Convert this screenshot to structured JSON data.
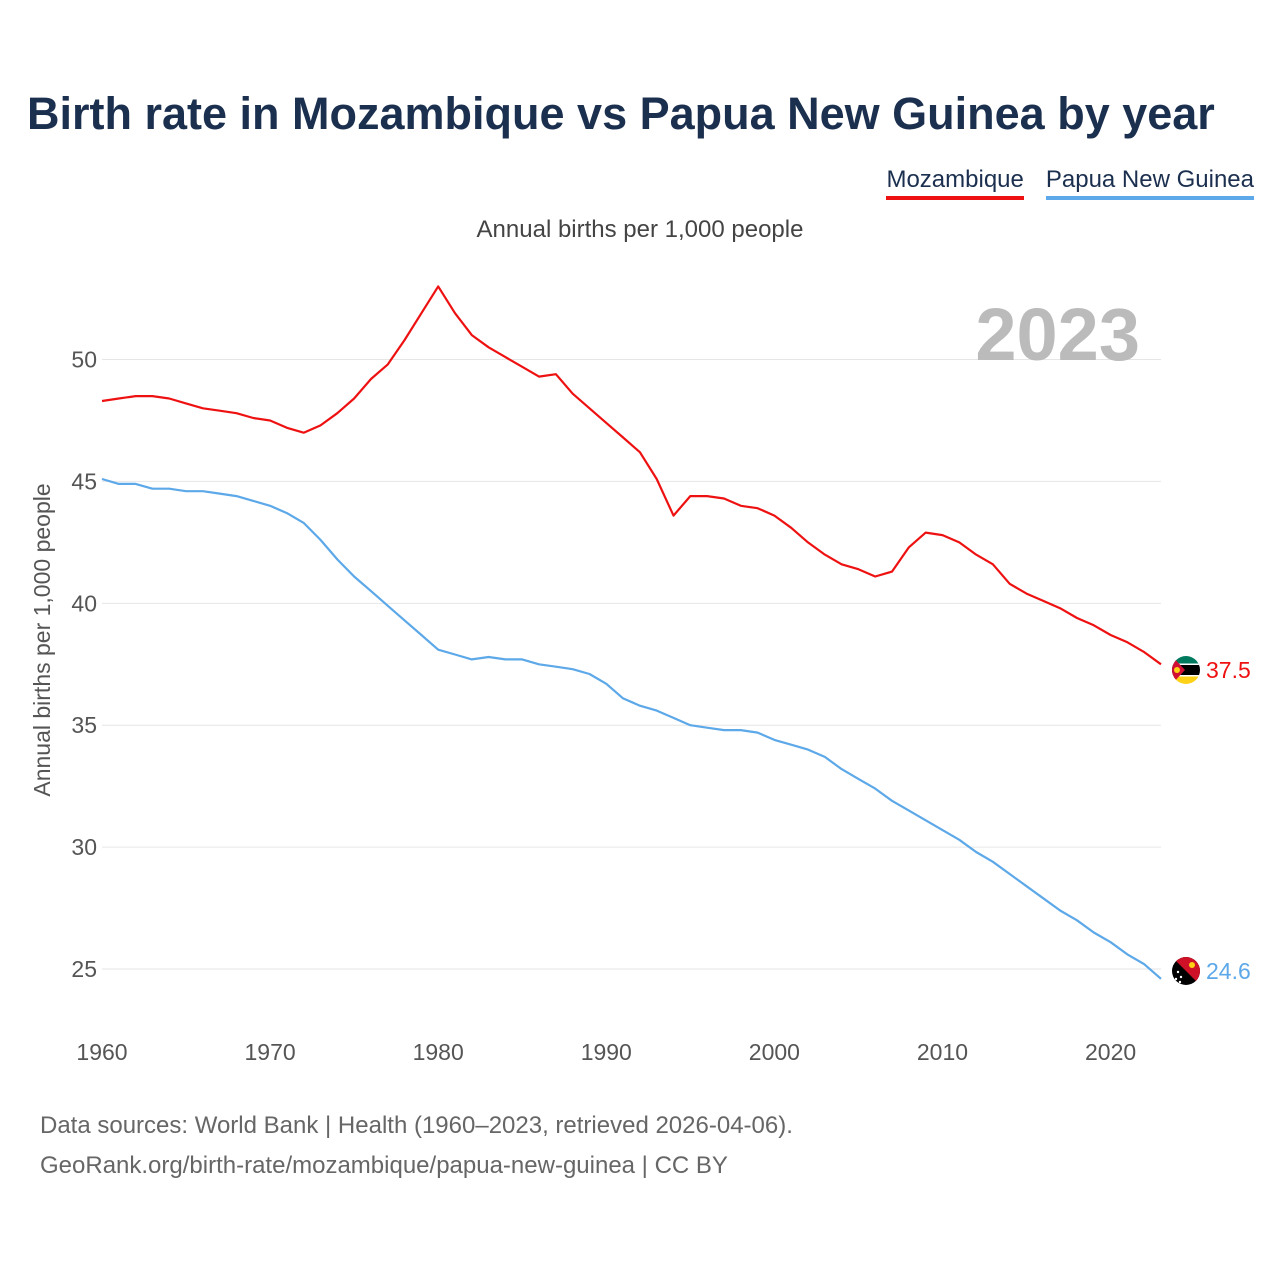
{
  "title": "Birth rate in Mozambique vs Papua New Guinea by year",
  "subtitle": "Annual births per 1,000 people",
  "footer": {
    "line1": "Data sources: World Bank | Health (1960–2023, retrieved 2026-04-06).",
    "line2": "GeoRank.org/birth-rate/mozambique/papua-new-guinea | CC BY"
  },
  "colors": {
    "mozambique": "#ee1111",
    "png": "#5ca8e8",
    "grid": "#e6e6e6",
    "year": "#bbbbbb"
  },
  "chart_data": {
    "type": "line",
    "title": "Birth rate in Mozambique vs Papua New Guinea by year",
    "ylabel": "Annual births per 1,000 people",
    "xlabel": "",
    "year_label": "2023",
    "xlim": [
      1960,
      2023
    ],
    "ylim": [
      22.5,
      54
    ],
    "x_ticks": [
      "1960",
      "1970",
      "1980",
      "1990",
      "2000",
      "2010",
      "2020"
    ],
    "y_ticks": [
      "25",
      "30",
      "35",
      "40",
      "45",
      "50"
    ],
    "legend": [
      "Mozambique",
      "Papua New Guinea"
    ],
    "x": [
      1960,
      1961,
      1962,
      1963,
      1964,
      1965,
      1966,
      1967,
      1968,
      1969,
      1970,
      1971,
      1972,
      1973,
      1974,
      1975,
      1976,
      1977,
      1978,
      1979,
      1980,
      1981,
      1982,
      1983,
      1984,
      1985,
      1986,
      1987,
      1988,
      1989,
      1990,
      1991,
      1992,
      1993,
      1994,
      1995,
      1996,
      1997,
      1998,
      1999,
      2000,
      2001,
      2002,
      2003,
      2004,
      2005,
      2006,
      2007,
      2008,
      2009,
      2010,
      2011,
      2012,
      2013,
      2014,
      2015,
      2016,
      2017,
      2018,
      2019,
      2020,
      2021,
      2022,
      2023
    ],
    "series": [
      {
        "name": "Mozambique",
        "end_label": "37.5",
        "values": [
          48.3,
          48.4,
          48.5,
          48.5,
          48.4,
          48.2,
          48.0,
          47.9,
          47.8,
          47.6,
          47.5,
          47.2,
          47.0,
          47.3,
          47.8,
          48.4,
          49.2,
          49.8,
          50.8,
          51.9,
          53.0,
          51.9,
          51.0,
          50.5,
          50.1,
          49.7,
          49.3,
          49.4,
          48.6,
          48.0,
          47.4,
          46.8,
          46.2,
          45.1,
          43.6,
          44.4,
          44.4,
          44.3,
          44.0,
          43.9,
          43.6,
          43.1,
          42.5,
          42.0,
          41.6,
          41.4,
          41.1,
          41.3,
          42.3,
          42.9,
          42.8,
          42.5,
          42.0,
          41.6,
          40.8,
          40.4,
          40.1,
          39.8,
          39.4,
          39.1,
          38.7,
          38.4,
          38.0,
          37.5
        ]
      },
      {
        "name": "Papua New Guinea",
        "end_label": "24.6",
        "values": [
          45.1,
          44.9,
          44.9,
          44.7,
          44.7,
          44.6,
          44.6,
          44.5,
          44.4,
          44.2,
          44.0,
          43.7,
          43.3,
          42.6,
          41.8,
          41.1,
          40.5,
          39.9,
          39.3,
          38.7,
          38.1,
          37.9,
          37.7,
          37.8,
          37.7,
          37.7,
          37.5,
          37.4,
          37.3,
          37.1,
          36.7,
          36.1,
          35.8,
          35.6,
          35.3,
          35.0,
          34.9,
          34.8,
          34.8,
          34.7,
          34.4,
          34.2,
          34.0,
          33.7,
          33.2,
          32.8,
          32.4,
          31.9,
          31.5,
          31.1,
          30.7,
          30.3,
          29.8,
          29.4,
          28.9,
          28.4,
          27.9,
          27.4,
          27.0,
          26.5,
          26.1,
          25.6,
          25.2,
          24.6
        ]
      }
    ]
  }
}
